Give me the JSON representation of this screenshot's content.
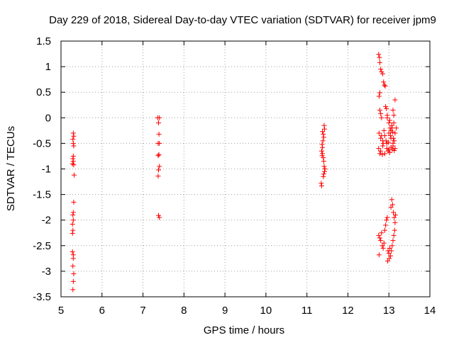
{
  "chart_data": {
    "type": "scatter",
    "title": "Day 229 of 2018, Sidereal Day-to-day VTEC variation (SDTVAR) for receiver jpm9",
    "xlabel": "GPS time / hours",
    "ylabel": "SDTVAR / TECUs",
    "xlim": [
      5,
      14
    ],
    "ylim": [
      -3.5,
      1.5
    ],
    "xticks": [
      5,
      6,
      7,
      8,
      9,
      10,
      11,
      12,
      13,
      14
    ],
    "yticks": [
      -3.5,
      -3,
      -2.5,
      -2,
      -1.5,
      -1,
      -0.5,
      0,
      0.5,
      1,
      1.5
    ],
    "xtick_labels": [
      "5",
      "6",
      "7",
      "8",
      "9",
      "10",
      "11",
      "12",
      "13",
      "14"
    ],
    "ytick_labels": [
      "-3.5",
      "-3",
      "-2.5",
      "-2",
      "-1.5",
      "-1",
      "-0.5",
      "0",
      "0.5",
      "1",
      "1.5"
    ],
    "grid": true,
    "grid_style": "dotted",
    "marker": "+",
    "marker_color": "#ff0000",
    "series": [
      {
        "name": "SDTVAR",
        "points": [
          [
            5.3,
            -0.3
          ],
          [
            5.31,
            -0.36
          ],
          [
            5.29,
            -0.42
          ],
          [
            5.3,
            -0.5
          ],
          [
            5.31,
            -0.55
          ],
          [
            5.3,
            -0.75
          ],
          [
            5.29,
            -0.8
          ],
          [
            5.3,
            -0.85
          ],
          [
            5.28,
            -0.9
          ],
          [
            5.31,
            -0.92
          ],
          [
            5.32,
            -1.12
          ],
          [
            5.31,
            -1.65
          ],
          [
            5.3,
            -1.85
          ],
          [
            5.29,
            -1.9
          ],
          [
            5.3,
            -2.0
          ],
          [
            5.28,
            -2.08
          ],
          [
            5.29,
            -2.2
          ],
          [
            5.28,
            -2.26
          ],
          [
            5.28,
            -2.62
          ],
          [
            5.3,
            -2.68
          ],
          [
            5.3,
            -2.75
          ],
          [
            5.29,
            -2.9
          ],
          [
            5.31,
            -3.05
          ],
          [
            5.3,
            -3.2
          ],
          [
            5.29,
            -3.36
          ],
          [
            7.36,
            0.0
          ],
          [
            7.4,
            0.0
          ],
          [
            7.38,
            -0.1
          ],
          [
            7.39,
            -0.32
          ],
          [
            7.37,
            -0.5
          ],
          [
            7.4,
            -0.5
          ],
          [
            7.39,
            -0.72
          ],
          [
            7.37,
            -0.74
          ],
          [
            7.4,
            -0.95
          ],
          [
            7.38,
            -1.02
          ],
          [
            7.37,
            -1.14
          ],
          [
            7.38,
            -1.91
          ],
          [
            7.4,
            -1.95
          ],
          [
            11.42,
            -0.15
          ],
          [
            11.43,
            -0.22
          ],
          [
            11.38,
            -0.27
          ],
          [
            11.4,
            -0.32
          ],
          [
            11.41,
            -0.38
          ],
          [
            11.39,
            -0.45
          ],
          [
            11.37,
            -0.52
          ],
          [
            11.38,
            -0.58
          ],
          [
            11.36,
            -0.65
          ],
          [
            11.38,
            -0.7
          ],
          [
            11.37,
            -0.74
          ],
          [
            11.4,
            -0.78
          ],
          [
            11.41,
            -0.85
          ],
          [
            11.42,
            -0.95
          ],
          [
            11.44,
            -1.0
          ],
          [
            11.43,
            -1.05
          ],
          [
            11.41,
            -1.1
          ],
          [
            11.4,
            -1.15
          ],
          [
            11.35,
            -1.28
          ],
          [
            11.36,
            -1.33
          ],
          [
            12.75,
            1.24
          ],
          [
            12.77,
            1.18
          ],
          [
            12.78,
            1.08
          ],
          [
            12.8,
            0.95
          ],
          [
            12.82,
            0.9
          ],
          [
            12.85,
            0.86
          ],
          [
            12.87,
            0.7
          ],
          [
            12.89,
            0.64
          ],
          [
            12.91,
            0.62
          ],
          [
            12.78,
            0.49
          ],
          [
            12.76,
            0.42
          ],
          [
            12.78,
            0.15
          ],
          [
            12.8,
            0.08
          ],
          [
            12.82,
            0.0
          ],
          [
            12.92,
            0.22
          ],
          [
            12.94,
            0.18
          ],
          [
            12.96,
            0.05
          ],
          [
            12.96,
            0.0
          ],
          [
            13.0,
            -0.1
          ],
          [
            13.02,
            -0.05
          ],
          [
            13.1,
            0.15
          ],
          [
            13.12,
            0.05
          ],
          [
            13.15,
            0.35
          ],
          [
            13.08,
            -0.2
          ],
          [
            13.05,
            -0.25
          ],
          [
            12.76,
            -0.3
          ],
          [
            12.8,
            -0.4
          ],
          [
            12.85,
            -0.45
          ],
          [
            12.9,
            -0.35
          ],
          [
            12.95,
            -0.5
          ],
          [
            13.0,
            -0.3
          ],
          [
            13.05,
            -0.4
          ],
          [
            13.1,
            -0.55
          ],
          [
            13.15,
            -0.6
          ],
          [
            13.13,
            -0.45
          ],
          [
            12.75,
            -0.6
          ],
          [
            12.8,
            -0.65
          ],
          [
            12.85,
            -0.55
          ],
          [
            12.9,
            -0.7
          ],
          [
            12.95,
            -0.6
          ],
          [
            13.0,
            -0.62
          ],
          [
            13.05,
            -0.58
          ],
          [
            13.1,
            -0.5
          ],
          [
            13.15,
            -0.3
          ],
          [
            13.18,
            -0.2
          ],
          [
            13.12,
            -0.1
          ],
          [
            13.07,
            -0.15
          ],
          [
            13.03,
            -0.2
          ],
          [
            12.88,
            -0.25
          ],
          [
            12.93,
            -0.45
          ],
          [
            12.98,
            -0.65
          ],
          [
            13.02,
            -0.68
          ],
          [
            13.08,
            -0.62
          ],
          [
            13.13,
            -0.64
          ],
          [
            12.78,
            -0.7
          ],
          [
            12.84,
            -0.72
          ],
          [
            12.86,
            -0.5
          ],
          [
            12.99,
            -0.48
          ],
          [
            13.04,
            -0.35
          ],
          [
            13.09,
            -0.28
          ],
          [
            13.11,
            -0.4
          ],
          [
            12.82,
            -0.35
          ],
          [
            12.75,
            -2.3
          ],
          [
            12.78,
            -2.35
          ],
          [
            12.8,
            -2.4
          ],
          [
            12.82,
            -2.25
          ],
          [
            12.84,
            -2.5
          ],
          [
            12.86,
            -2.55
          ],
          [
            12.88,
            -2.45
          ],
          [
            12.9,
            -2.2
          ],
          [
            12.92,
            -2.1
          ],
          [
            12.94,
            -2.0
          ],
          [
            12.96,
            -1.95
          ],
          [
            12.98,
            -2.6
          ],
          [
            13.0,
            -2.65
          ],
          [
            13.02,
            -2.55
          ],
          [
            13.04,
            -2.7
          ],
          [
            13.06,
            -2.6
          ],
          [
            13.08,
            -2.5
          ],
          [
            13.1,
            -2.4
          ],
          [
            13.12,
            -2.3
          ],
          [
            13.14,
            -2.2
          ],
          [
            13.05,
            -1.75
          ],
          [
            13.07,
            -1.6
          ],
          [
            13.09,
            -1.7
          ],
          [
            13.11,
            -1.85
          ],
          [
            13.13,
            -1.95
          ],
          [
            13.15,
            -2.05
          ],
          [
            12.97,
            -2.8
          ],
          [
            13.01,
            -2.75
          ],
          [
            12.76,
            -2.68
          ],
          [
            13.16,
            -1.9
          ]
        ]
      }
    ]
  }
}
